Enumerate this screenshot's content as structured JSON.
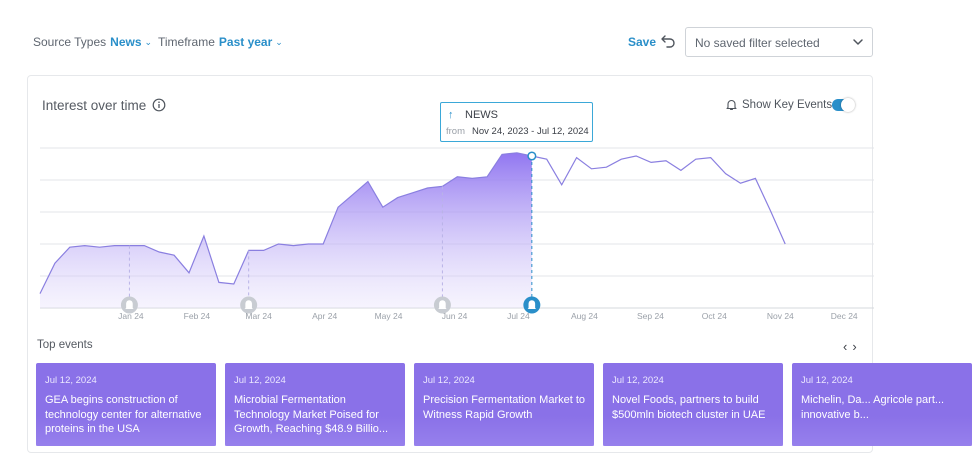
{
  "filters": {
    "source_types_label": "Source Types",
    "source_types_value": "News",
    "timeframe_label": "Timeframe",
    "timeframe_value": "Past year"
  },
  "toolbar": {
    "save_label": "Save",
    "saved_filter_text": "No saved filter selected"
  },
  "panel": {
    "title": "Interest over time",
    "show_key_events_label": "Show Key Events",
    "show_key_events_on": true
  },
  "tooltip": {
    "title": "NEWS",
    "from_label": "from",
    "range": "Nov 24, 2023 - Jul 12, 2024"
  },
  "chart_data": {
    "type": "area",
    "title": "Interest over time",
    "xlabel": "",
    "ylabel": "",
    "ylim": [
      0,
      100
    ],
    "grid": true,
    "x_tick_labels": [
      "Jan 24",
      "Feb 24",
      "Mar 24",
      "Apr 24",
      "May 24",
      "Jun 24",
      "Jul 24",
      "Aug 24",
      "Sep 24",
      "Oct 24",
      "Nov 24",
      "Dec 24"
    ],
    "x": [
      "2023-11-24",
      "2023-12-01",
      "2023-12-08",
      "2023-12-15",
      "2023-12-22",
      "2023-12-29",
      "2024-01-05",
      "2024-01-12",
      "2024-01-19",
      "2024-01-26",
      "2024-02-02",
      "2024-02-09",
      "2024-02-16",
      "2024-02-23",
      "2024-03-01",
      "2024-03-08",
      "2024-03-15",
      "2024-03-22",
      "2024-03-29",
      "2024-04-05",
      "2024-04-12",
      "2024-04-19",
      "2024-04-26",
      "2024-05-03",
      "2024-05-10",
      "2024-05-17",
      "2024-05-24",
      "2024-05-31",
      "2024-06-07",
      "2024-06-14",
      "2024-06-21",
      "2024-06-28",
      "2024-07-05",
      "2024-07-12",
      "2024-07-19",
      "2024-07-26",
      "2024-08-02",
      "2024-08-09",
      "2024-08-16",
      "2024-08-23",
      "2024-08-30",
      "2024-09-06",
      "2024-09-13",
      "2024-09-20",
      "2024-09-27",
      "2024-10-04",
      "2024-10-11",
      "2024-10-18",
      "2024-10-25",
      "2024-11-01",
      "2024-11-08"
    ],
    "series": [
      {
        "values": [
          9,
          28,
          38,
          39,
          38,
          39,
          39,
          39,
          35,
          33,
          22,
          45,
          16,
          15,
          36,
          36,
          40,
          39,
          40,
          40,
          63,
          71,
          79,
          63,
          69,
          72,
          75,
          76,
          82,
          81,
          82,
          96,
          97,
          95,
          93,
          77,
          94,
          87,
          88,
          93,
          95,
          91,
          92,
          86,
          93,
          94,
          84,
          78,
          81,
          61,
          40
        ]
      }
    ],
    "highlight": {
      "x": "2024-07-12",
      "series": "NEWS"
    },
    "key_events": [
      "2024-01-05",
      "2024-03-01",
      "2024-05-31",
      "2024-07-12"
    ]
  },
  "top_events": {
    "title": "Top events",
    "items": [
      {
        "date": "Jul 12, 2024",
        "title": "GEA begins construction of technology center for alternative proteins in the USA"
      },
      {
        "date": "Jul 12, 2024",
        "title": "Microbial Fermentation Technology Market Poised for Growth, Reaching $48.9 Billio..."
      },
      {
        "date": "Jul 12, 2024",
        "title": "Precision Fermentation Market to Witness Rapid Growth"
      },
      {
        "date": "Jul 12, 2024",
        "title": "Novel Foods, partners to build $500mln biotech cluster in UAE"
      },
      {
        "date": "Jul 12, 2024",
        "title": "Michelin, Da... Agricole part... innovative b..."
      }
    ]
  },
  "icons": {
    "undo": "undo-icon",
    "dropdown": "chevron-down-icon",
    "info": "info-icon",
    "bell": "bell-icon",
    "prev": "chevron-left-icon",
    "next": "chevron-right-icon",
    "tooltip_arrow": "arrow-up-icon"
  },
  "colors": {
    "accent": "#2a8fc9",
    "series_line": "#8a7fe0",
    "area_top": "#8b6ff0",
    "event_card": "#8a71e8"
  }
}
